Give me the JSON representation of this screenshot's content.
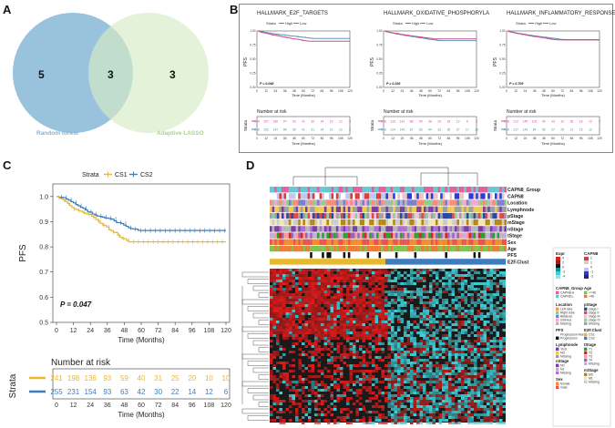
{
  "panels": {
    "A": {
      "letter": "A",
      "venn": {
        "left_only": "5",
        "overlap": "3",
        "right_only": "3",
        "left_label": "Random forest",
        "right_label": "Adaptive LASSO",
        "colors": {
          "left": "#7fb3d5",
          "right": "#d5ebc5"
        }
      }
    },
    "B": {
      "letter": "B",
      "subplots": [
        {
          "title": "HALLMARK_E2F_TARGETS",
          "p": "P = 0.048",
          "risk_high": [
            "248",
            "207",
            "160",
            "97",
            "63",
            "41",
            "30",
            "24",
            "19",
            "12",
            "9"
          ],
          "risk_low": [
            "248",
            "202",
            "147",
            "98",
            "59",
            "41",
            "31",
            "24",
            "21",
            "13",
            "6"
          ]
        },
        {
          "title": "HALLMARK_OXIDATIVE_PHOSPHORYLA",
          "p": "P = 0.226",
          "risk_high": [
            "248",
            "215",
            "141",
            "88",
            "59",
            "38",
            "29",
            "18",
            "13",
            "9",
            "3"
          ],
          "risk_low": [
            "248",
            "214",
            "149",
            "87",
            "63",
            "44",
            "32",
            "26",
            "27",
            "17",
            "13"
          ]
        },
        {
          "title": "HALLMARK_INFLAMMATORY_RESPONSE",
          "p": "P = 0.709",
          "risk_high": [
            "248",
            "212",
            "145",
            "102",
            "64",
            "43",
            "32",
            "28",
            "18",
            "13",
            "9"
          ],
          "risk_low": [
            "248",
            "217",
            "143",
            "84",
            "59",
            "37",
            "29",
            "21",
            "15",
            "12",
            "7"
          ]
        }
      ],
      "strata_label": "Strata",
      "legend_high": "High",
      "legend_low": "Low",
      "ylabel": "PFS",
      "xlabel": "Time (Months)",
      "risk_title": "Number at risk",
      "risk_xlabel": "Time (Months)",
      "yticks": [
        "1.00",
        "0.75",
        "0.50",
        "0.25",
        "0.00"
      ],
      "xticks": [
        "0",
        "12",
        "24",
        "36",
        "48",
        "60",
        "72",
        "84",
        "96",
        "108",
        "120"
      ],
      "colors": {
        "high": "#c64d8c",
        "low": "#4b8ab3"
      }
    },
    "C": {
      "letter": "C",
      "strata_label": "Strata",
      "legend_cs1": "CS1",
      "legend_cs2": "CS2",
      "ylabel": "PFS",
      "xlabel": "Time (Months)",
      "p": "P = 0.047",
      "yticks": [
        "1.0",
        "0.9",
        "0.8",
        "0.7",
        "0.6",
        "0.5"
      ],
      "xticks": [
        "0",
        "12",
        "24",
        "36",
        "48",
        "60",
        "72",
        "84",
        "96",
        "108",
        "120"
      ],
      "risk_title": "Number at risk",
      "risk_ylabel": "Strata",
      "risk_cs1": [
        "241",
        "198",
        "136",
        "93",
        "59",
        "40",
        "31",
        "25",
        "20",
        "10",
        "10"
      ],
      "risk_cs2": [
        "255",
        "231",
        "154",
        "93",
        "63",
        "42",
        "30",
        "22",
        "14",
        "12",
        "6"
      ],
      "colors": {
        "cs1": "#e8b92b",
        "cs2": "#3d7dbf"
      }
    },
    "D": {
      "letter": "D",
      "annotation_rows": [
        "CAPN8_Group",
        "CAPN8",
        "Location",
        "Lymphnode",
        "pStage",
        "mStage",
        "nStage",
        "tStage",
        "Sex",
        "Age",
        "PFS",
        "E2F.Clust"
      ],
      "legend": {
        "expr": {
          "title": "Expr",
          "ticks": [
            "4",
            "2",
            "0",
            "-2",
            "-4"
          ]
        },
        "capn8": {
          "title": "CAPN8",
          "ticks": [
            "2",
            "1",
            "0",
            "-1",
            "-2"
          ]
        },
        "capn8_group": {
          "title": "CAPN8_Group",
          "items": [
            "CAPN8.H",
            "CAPN8.L"
          ]
        },
        "age": {
          "title": "Age",
          "items": [
            "<=46",
            ">46"
          ]
        },
        "location": {
          "title": "Location",
          "items": [
            "Left lobe",
            "Right lobe",
            "Bilateral",
            "Isthmus",
            "Missing"
          ]
        },
        "pstage": {
          "title": "pStage",
          "items": [
            "stage I",
            "stage II",
            "stage III",
            "stage IV",
            "Missing"
          ]
        },
        "pfs": {
          "title": "PFS",
          "items": [
            "Progression-free",
            "Progression"
          ]
        },
        "e2f": {
          "title": "E2F.Clust",
          "items": [
            "CS1",
            "CS2"
          ]
        },
        "lymphnode": {
          "title": "Lymphnode",
          "items": [
            "YES",
            "NO",
            "Missing"
          ]
        },
        "tstage": {
          "title": "tStage",
          "items": [
            "T1",
            "T2",
            "T3",
            "T4",
            "Missing"
          ]
        },
        "nstage": {
          "title": "nStage",
          "items": [
            "N0",
            "N1",
            "Missing"
          ]
        },
        "mstage": {
          "title": "mStage",
          "items": [
            "M0",
            "M1",
            "Missing"
          ]
        },
        "sex": {
          "title": "Sex",
          "items": [
            "female",
            "male"
          ]
        }
      }
    }
  }
}
